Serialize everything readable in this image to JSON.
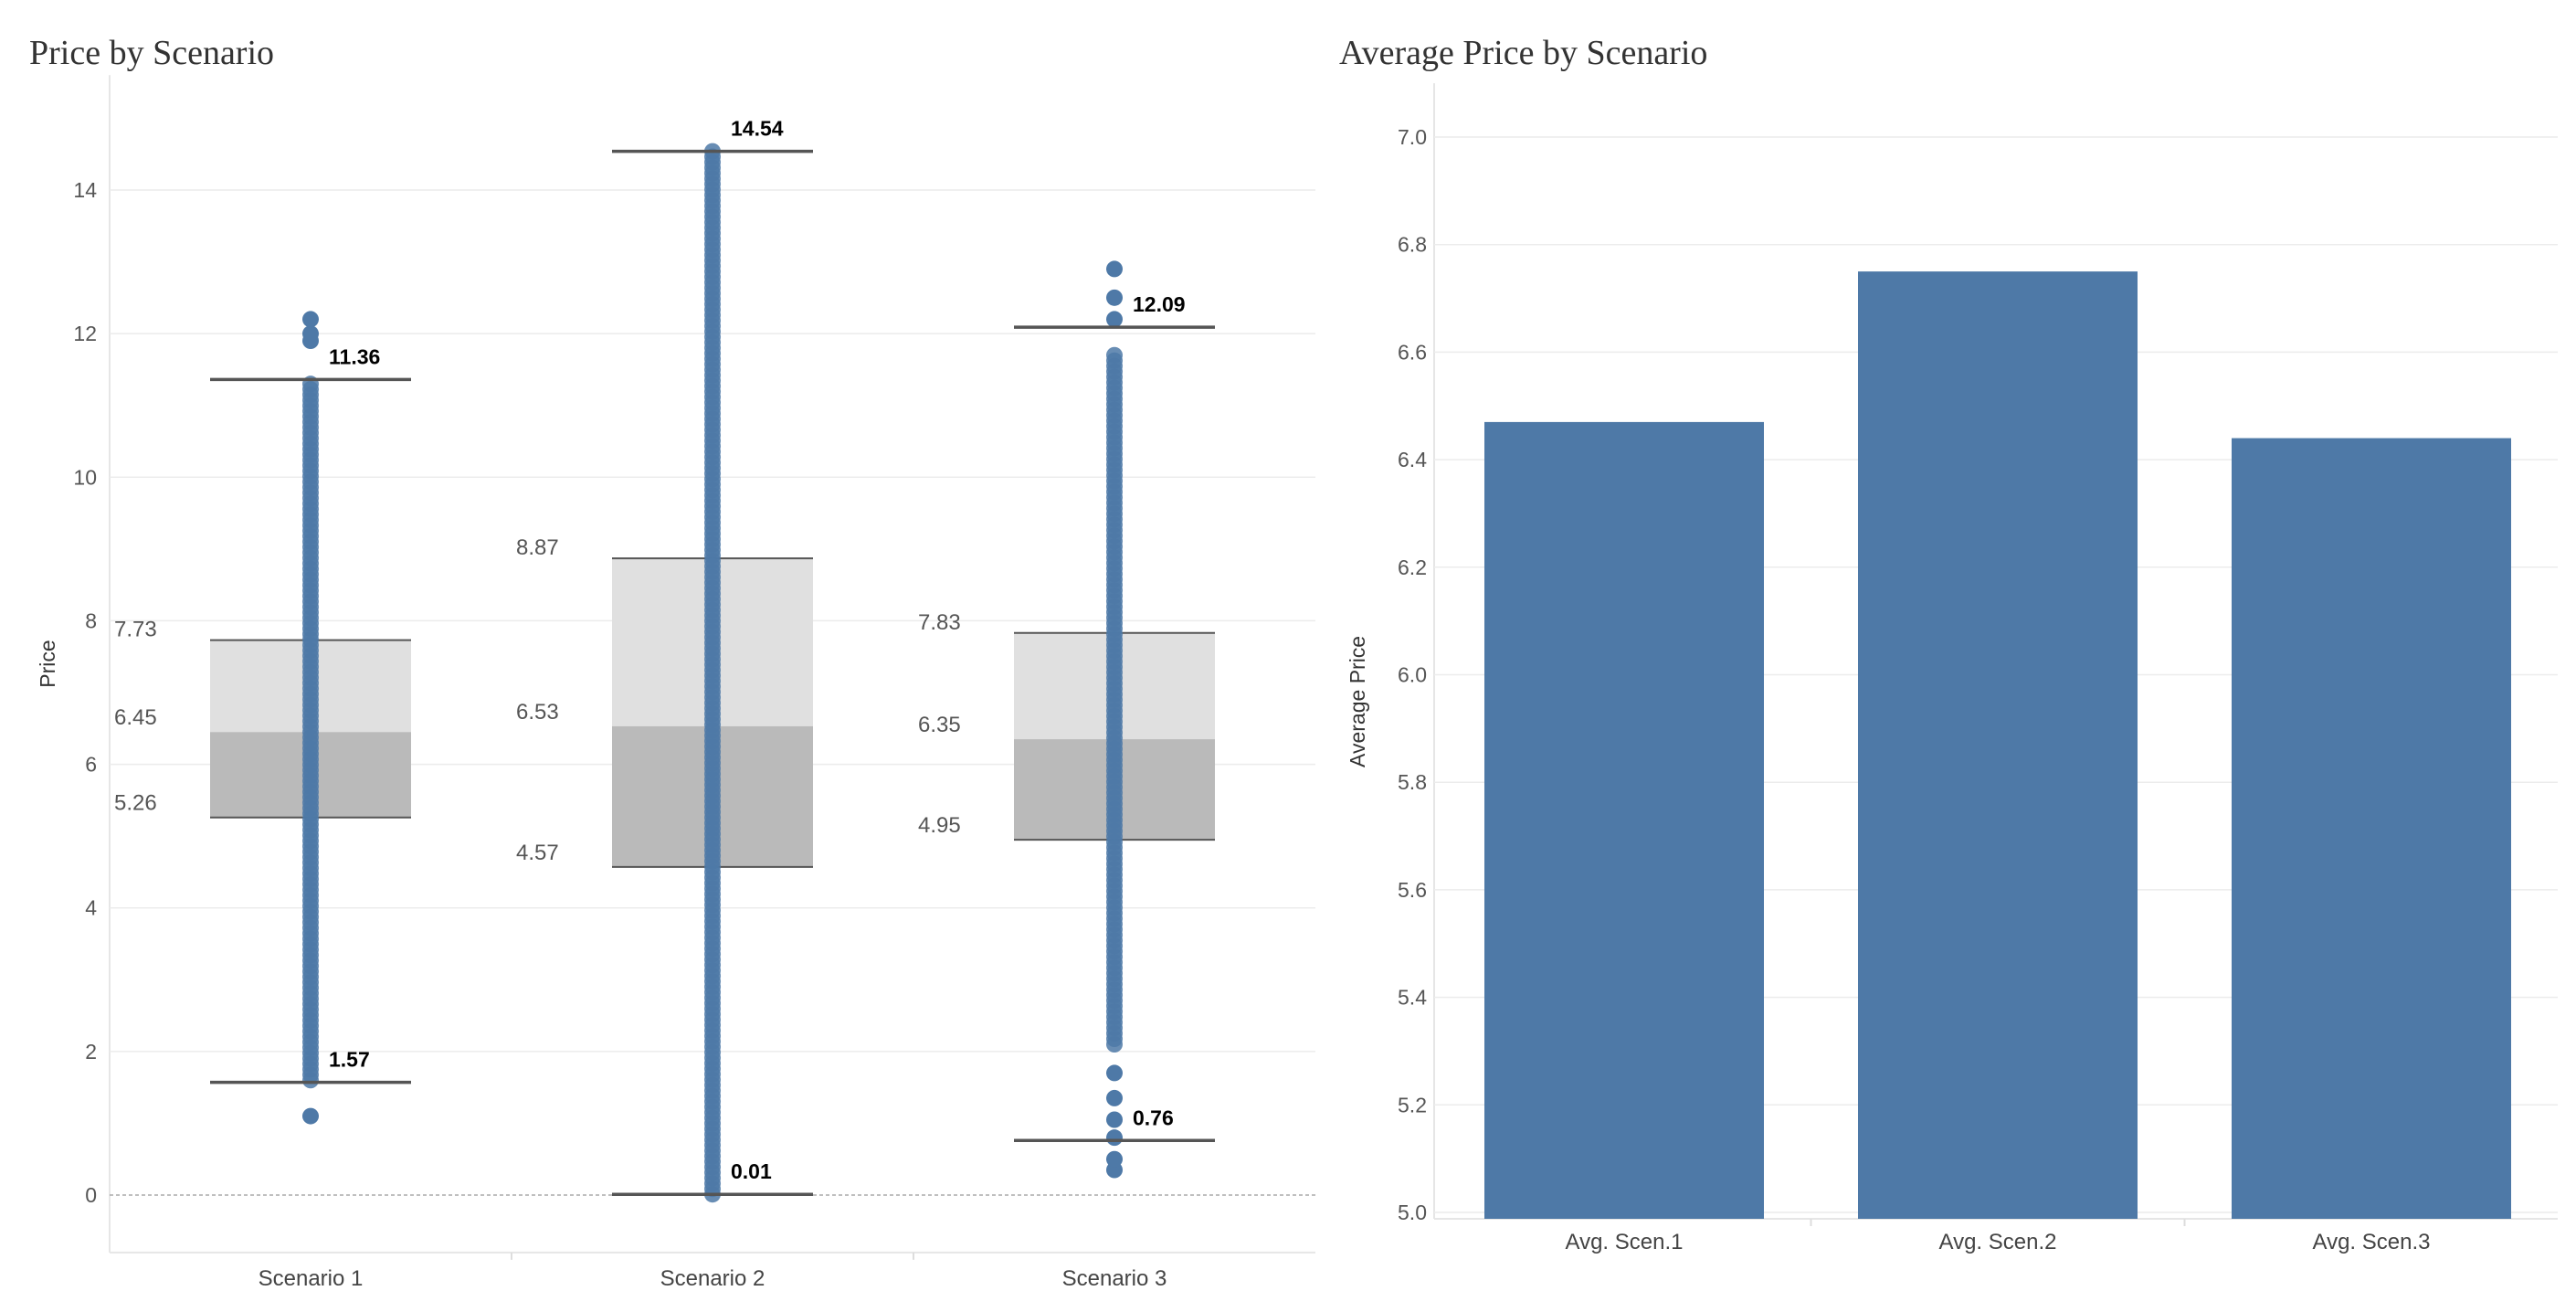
{
  "panels": {
    "left_title": "Price by Scenario",
    "right_title": "Average Price by Scenario"
  },
  "colors": {
    "points": "#4e79a7",
    "box_upper": "#e0e0e0",
    "box_lower": "#bababa",
    "whisker": "#555555",
    "bars": "#4e79a7",
    "grid": "#ececec"
  },
  "chart_data": [
    {
      "type": "box",
      "title": "Price by Scenario",
      "ylabel": "Price",
      "ylim": [
        -0.8,
        15.6
      ],
      "yticks": [
        0,
        2,
        4,
        6,
        8,
        10,
        12,
        14
      ],
      "categories": [
        "Scenario 1",
        "Scenario 2",
        "Scenario 3"
      ],
      "boxes": [
        {
          "category": "Scenario 1",
          "whisker_low": 1.57,
          "q1": 5.26,
          "median": 6.45,
          "q3": 7.73,
          "whisker_high": 11.36,
          "labels": {
            "whisker_low": "1.57",
            "q1": "5.26",
            "median": "6.45",
            "q3": "7.73",
            "whisker_high": "11.36"
          },
          "point_range": [
            1.6,
            11.3
          ],
          "outliers": [
            1.1,
            11.9,
            12.0,
            12.2
          ]
        },
        {
          "category": "Scenario 2",
          "whisker_low": 0.01,
          "q1": 4.57,
          "median": 6.53,
          "q3": 8.87,
          "whisker_high": 14.54,
          "labels": {
            "whisker_low": "0.01",
            "q1": "4.57",
            "median": "6.53",
            "q3": "8.87",
            "whisker_high": "14.54"
          },
          "point_range": [
            0.01,
            14.54
          ],
          "outliers": []
        },
        {
          "category": "Scenario 3",
          "whisker_low": 0.76,
          "q1": 4.95,
          "median": 6.35,
          "q3": 7.83,
          "whisker_high": 12.09,
          "labels": {
            "whisker_low": "0.76",
            "q1": "4.95",
            "median": "6.35",
            "q3": "7.83",
            "whisker_high": "12.09"
          },
          "point_range": [
            2.1,
            11.7
          ],
          "outliers": [
            0.35,
            0.5,
            0.8,
            1.05,
            1.35,
            1.7,
            12.2,
            12.5,
            12.9
          ]
        }
      ]
    },
    {
      "type": "bar",
      "title": "Average Price by Scenario",
      "ylabel": "Average Price",
      "ylim": [
        5.0,
        7.1
      ],
      "yticks": [
        "5.0",
        "5.2",
        "5.4",
        "5.6",
        "5.8",
        "6.0",
        "6.2",
        "6.4",
        "6.6",
        "6.8",
        "7.0"
      ],
      "categories": [
        "Avg. Scen.1",
        "Avg. Scen.2",
        "Avg. Scen.3"
      ],
      "values": [
        6.47,
        6.75,
        6.44
      ]
    }
  ]
}
